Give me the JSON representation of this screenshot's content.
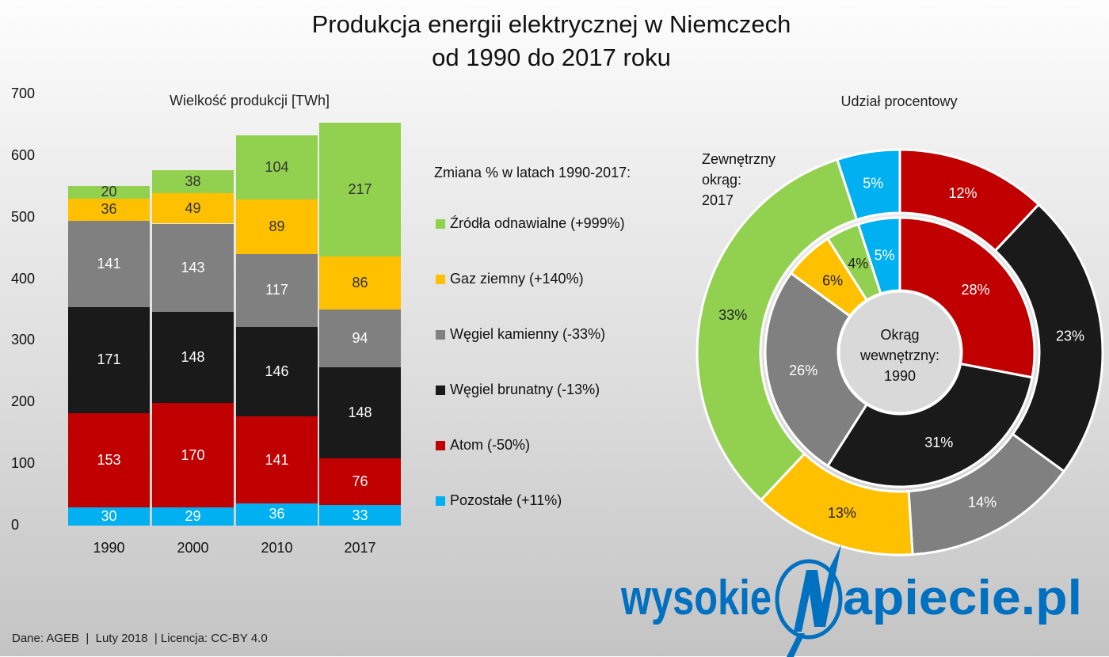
{
  "title": {
    "line1": "Produkcja energii elektrycznej w Niemczech",
    "line2": "od 1990 do 2017 roku"
  },
  "bar_chart": {
    "subtitle": "Wielkość produkcji [TWh]",
    "y_ticks": [
      "700",
      "600",
      "500",
      "400",
      "300",
      "200",
      "100",
      "0"
    ],
    "years": [
      "1990",
      "2000",
      "2010",
      "2017"
    ]
  },
  "legend": {
    "title": "Zmiana % w latach 1990-2017:",
    "items": [
      {
        "label": "Źródła odnawialne (+999%)",
        "color": "#92d050"
      },
      {
        "label": "Gaz ziemny (+140%)",
        "color": "#ffc000"
      },
      {
        "label": "Węgiel kamienny (-33%)",
        "color": "#808080"
      },
      {
        "label": "Węgiel brunatny (-13%)",
        "color": "#1a1a1a"
      },
      {
        "label": "Atom (-50%)",
        "color": "#c00000"
      },
      {
        "label": "Pozostałe (+11%)",
        "color": "#00b0f0"
      }
    ]
  },
  "donut": {
    "subtitle": "Udział procentowy",
    "outer_label": [
      "Zewnętrzny",
      "okrąg:",
      "2017"
    ],
    "center_label": [
      "Okrąg",
      "wewnętrzny:",
      "1990"
    ]
  },
  "footer": "Dane: AGEB  |  Luty 2018  | Licencja: CC-BY 4.0",
  "logo": {
    "left": "wysokie",
    "letter": "N",
    "right": "apiecie.pl",
    "color": "#0070c0"
  },
  "chart_data": [
    {
      "type": "bar",
      "stacked": true,
      "title": "Wielkość produkcji [TWh]",
      "xlabel": "",
      "ylabel": "TWh",
      "ylim": [
        0,
        700
      ],
      "yticks": [
        0,
        100,
        200,
        300,
        400,
        500,
        600,
        700
      ],
      "grid": false,
      "categories": [
        "1990",
        "2000",
        "2010",
        "2017"
      ],
      "series": [
        {
          "name": "Pozostałe",
          "color": "#00b0f0",
          "values": [
            30,
            29,
            36,
            33
          ]
        },
        {
          "name": "Atom",
          "color": "#c00000",
          "values": [
            153,
            170,
            141,
            76
          ]
        },
        {
          "name": "Węgiel brunatny",
          "color": "#1a1a1a",
          "values": [
            171,
            148,
            146,
            148
          ]
        },
        {
          "name": "Węgiel kamienny",
          "color": "#808080",
          "values": [
            141,
            143,
            117,
            94
          ]
        },
        {
          "name": "Gaz ziemny",
          "color": "#ffc000",
          "values": [
            36,
            49,
            89,
            86
          ]
        },
        {
          "name": "Źródła odnawialne",
          "color": "#92d050",
          "values": [
            20,
            38,
            104,
            217
          ]
        }
      ],
      "legend_position": "right",
      "legend_changes": {
        "Źródła odnawialne": "+999%",
        "Gaz ziemny": "+140%",
        "Węgiel kamienny": "-33%",
        "Węgiel brunatny": "-13%",
        "Atom": "-50%",
        "Pozostałe": "+11%"
      }
    },
    {
      "type": "pie",
      "variant": "donut-nested",
      "title": "Udział procentowy",
      "rings": [
        {
          "name": "Okrąg wewnętrzny: 1990",
          "categories": [
            "Atom",
            "Węgiel brunatny",
            "Węgiel kamienny",
            "Gaz ziemny",
            "Źródła odnawialne",
            "Pozostałe"
          ],
          "values": [
            28,
            31,
            26,
            6,
            4,
            5
          ]
        },
        {
          "name": "Zewnętrzny okrąg: 2017",
          "categories": [
            "Atom",
            "Węgiel brunatny",
            "Węgiel kamienny",
            "Gaz ziemny",
            "Źródła odnawialne",
            "Pozostałe"
          ],
          "values": [
            12,
            23,
            14,
            13,
            33,
            5
          ]
        }
      ],
      "colors": [
        "#c00000",
        "#1a1a1a",
        "#808080",
        "#ffc000",
        "#92d050",
        "#00b0f0"
      ],
      "label_text_colors": [
        "#ffffff",
        "#ffffff",
        "#ffffff",
        "#222222",
        "#222222",
        "#ffffff"
      ]
    }
  ]
}
